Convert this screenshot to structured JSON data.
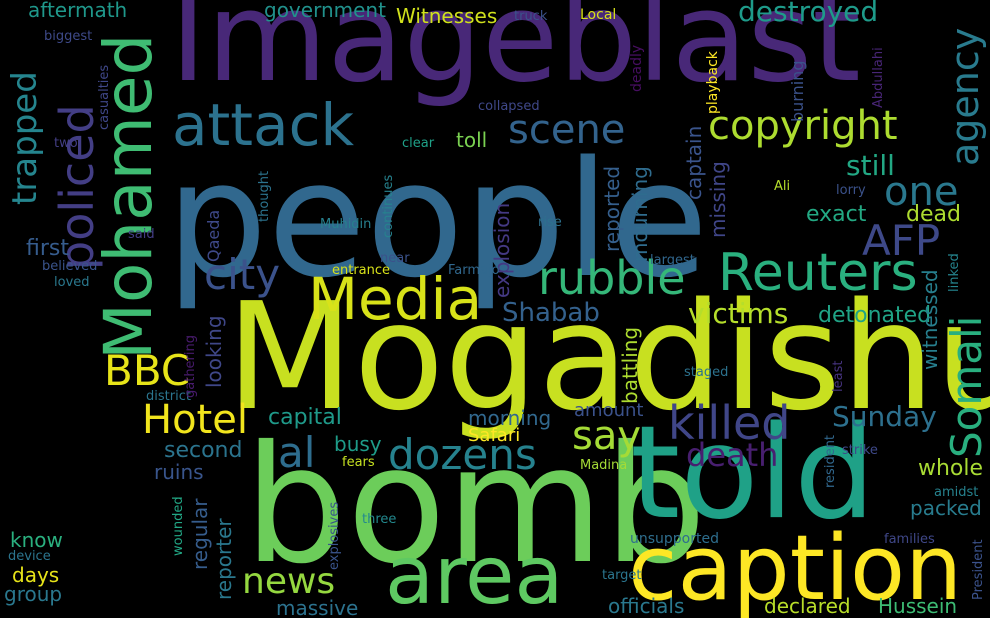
{
  "words": [
    {
      "text": "people",
      "color": "#31688e"
    },
    {
      "text": "Mogadishu",
      "color": "#c8e020"
    },
    {
      "text": "bomb",
      "color": "#6ccd5a"
    },
    {
      "text": "Imageblast",
      "color": "#482878"
    },
    {
      "text": "told",
      "color": "#1fa187"
    },
    {
      "text": "caption",
      "color": "#fde725"
    },
    {
      "text": "area",
      "color": "#5ec962"
    },
    {
      "text": "Mohamed",
      "color": "#3fbc73"
    },
    {
      "text": "attack",
      "color": "#2c728e"
    },
    {
      "text": "Media",
      "color": "#d8e219"
    },
    {
      "text": "Reuters",
      "color": "#2ab07f"
    },
    {
      "text": "copyright",
      "color": "#addc30"
    },
    {
      "text": "policed",
      "color": "#433e85"
    },
    {
      "text": "trapped",
      "color": "#25858e"
    },
    {
      "text": "Somali",
      "color": "#29af7f"
    },
    {
      "text": "agency",
      "color": "#297b8e"
    },
    {
      "text": "rubble",
      "color": "#35b779"
    },
    {
      "text": "city",
      "color": "#3b528b"
    },
    {
      "text": "AFP",
      "color": "#3e4989"
    },
    {
      "text": "one",
      "color": "#2a788e"
    },
    {
      "text": "scene",
      "color": "#33638d"
    },
    {
      "text": "killed",
      "color": "#404688"
    },
    {
      "text": "say",
      "color": "#a5db36"
    },
    {
      "text": "al",
      "color": "#2e6d8e"
    },
    {
      "text": "dozens",
      "color": "#26828e"
    },
    {
      "text": "BBC",
      "color": "#e7e419"
    },
    {
      "text": "Hotel",
      "color": "#f1e51d"
    },
    {
      "text": "news",
      "color": "#95d840"
    },
    {
      "text": "destroyed",
      "color": "#1e9b8a"
    },
    {
      "text": "still",
      "color": "#22a884"
    },
    {
      "text": "death",
      "color": "#481f70"
    },
    {
      "text": "victims",
      "color": "#b5de2b"
    },
    {
      "text": "Sunday",
      "color": "#2d708e"
    },
    {
      "text": "exact",
      "color": "#23a983"
    },
    {
      "text": "dead",
      "color": "#addc30"
    },
    {
      "text": "Shabab",
      "color": "#34618d"
    },
    {
      "text": "detonated",
      "color": "#20a386"
    },
    {
      "text": "Witnesses",
      "color": "#d0e11c"
    },
    {
      "text": "government",
      "color": "#21918c"
    },
    {
      "text": "aftermath",
      "color": "#1f988b"
    },
    {
      "text": "first",
      "color": "#365c8d"
    },
    {
      "text": "capital",
      "color": "#1f9a8a"
    },
    {
      "text": "busy",
      "color": "#1e9c89"
    },
    {
      "text": "second",
      "color": "#2b748e"
    },
    {
      "text": "ruins",
      "color": "#39558c"
    },
    {
      "text": "Safari",
      "color": "#fde725"
    },
    {
      "text": "morning",
      "color": "#31688e"
    },
    {
      "text": "amount",
      "color": "#3b528b"
    },
    {
      "text": "whole",
      "color": "#a8db34"
    },
    {
      "text": "packed",
      "color": "#287c8e"
    },
    {
      "text": "declared",
      "color": "#b8de29"
    },
    {
      "text": "Hussein",
      "color": "#3dbc74"
    },
    {
      "text": "officials",
      "color": "#2a788e"
    },
    {
      "text": "massive",
      "color": "#2c728e"
    },
    {
      "text": "group",
      "color": "#2a788e"
    },
    {
      "text": "days",
      "color": "#e7e419"
    },
    {
      "text": "know",
      "color": "#2ab07f"
    },
    {
      "text": "toll",
      "color": "#7ad151"
    },
    {
      "text": "explosion",
      "color": "#443983"
    },
    {
      "text": "reported",
      "color": "#355f8d"
    },
    {
      "text": "mourning",
      "color": "#2f6c8e"
    },
    {
      "text": "captain",
      "color": "#3a548c"
    },
    {
      "text": "missing",
      "color": "#404688"
    },
    {
      "text": "witnessed",
      "color": "#277f8e"
    },
    {
      "text": "looking",
      "color": "#3f4788"
    },
    {
      "text": "battling",
      "color": "#addc30"
    },
    {
      "text": "regular",
      "color": "#365d8d"
    },
    {
      "text": "reporter",
      "color": "#2a788e"
    },
    {
      "text": "unsupported",
      "color": "#2e6e8e"
    },
    {
      "text": "burning",
      "color": "#3b528b"
    },
    {
      "text": "playback",
      "color": "#fde725"
    },
    {
      "text": "deadly",
      "color": "#470e61"
    },
    {
      "text": "Abdullahi",
      "color": "#482576"
    },
    {
      "text": "Local",
      "color": "#d8e219"
    },
    {
      "text": "truck",
      "color": "#3b528b"
    },
    {
      "text": "biggest",
      "color": "#3e4a89"
    },
    {
      "text": "casualties",
      "color": "#3f4788"
    },
    {
      "text": "two",
      "color": "#433e85"
    },
    {
      "text": "said",
      "color": "#433d84"
    },
    {
      "text": "believed",
      "color": "#3a548c"
    },
    {
      "text": "loved",
      "color": "#2a788e"
    },
    {
      "text": "district",
      "color": "#2b758e"
    },
    {
      "text": "gathering",
      "color": "#481b6d"
    },
    {
      "text": "collapsed",
      "color": "#3f4889"
    },
    {
      "text": "clear",
      "color": "#1fa188"
    },
    {
      "text": "thought",
      "color": "#2c738e"
    },
    {
      "text": "Qaeda",
      "color": "#3e4989"
    },
    {
      "text": "Muhidin",
      "color": "#27808e"
    },
    {
      "text": "continues",
      "color": "#26828e"
    },
    {
      "text": "near",
      "color": "#3b528b"
    },
    {
      "text": "entrance",
      "color": "#d8e219"
    },
    {
      "text": "Farmajo",
      "color": "#31688e"
    },
    {
      "text": "rise",
      "color": "#2d718e"
    },
    {
      "text": "largest",
      "color": "#31678e"
    },
    {
      "text": "Ali",
      "color": "#b5de2b"
    },
    {
      "text": "lorry",
      "color": "#3b528b"
    },
    {
      "text": "linked",
      "color": "#25848e"
    },
    {
      "text": "least",
      "color": "#46337f"
    },
    {
      "text": "staged",
      "color": "#2c728e"
    },
    {
      "text": "strike",
      "color": "#3e4989"
    },
    {
      "text": "resident",
      "color": "#31688e"
    },
    {
      "text": "amidst",
      "color": "#26828e"
    },
    {
      "text": "families",
      "color": "#3f4788"
    },
    {
      "text": "President",
      "color": "#3b528b"
    },
    {
      "text": "Madina",
      "color": "#a5db36"
    },
    {
      "text": "fears",
      "color": "#c5e021"
    },
    {
      "text": "three",
      "color": "#23898e"
    },
    {
      "text": "explosives",
      "color": "#3a548c"
    },
    {
      "text": "wounded",
      "color": "#22a785"
    },
    {
      "text": "target",
      "color": "#2b758e"
    },
    {
      "text": "device",
      "color": "#2b758e"
    }
  ]
}
